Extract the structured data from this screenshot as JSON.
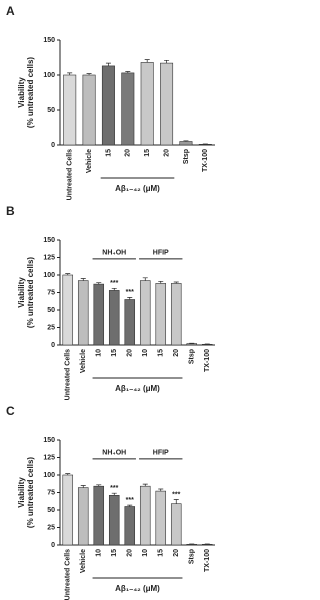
{
  "chart_data": [
    {
      "type": "bar",
      "panel": "A",
      "ylabel": [
        "Viability",
        "(% untreated cells)"
      ],
      "categories": [
        "Untreated Cells",
        "Vehicle",
        "15",
        "20",
        "15",
        "20",
        "Stsp",
        "TX-100"
      ],
      "values": [
        100,
        100,
        113,
        103,
        118,
        117,
        5,
        1
      ],
      "errors": [
        3,
        2,
        4,
        2,
        4,
        4,
        1,
        0.5
      ],
      "colors": [
        "#d9d9d9",
        "#bdbdbd",
        "#6e6e6e",
        "#7a7a7a",
        "#c8c8c8",
        "#c8c8c8",
        "#9a9a9a",
        "#555555"
      ],
      "xlabel": "Aβ₁₋₄₂ (μM)",
      "ylim": [
        0,
        150
      ],
      "yticks": [
        0,
        50,
        100,
        150
      ]
    },
    {
      "type": "bar",
      "panel": "B",
      "ylabel": [
        "Viability",
        "(% untreated cells)"
      ],
      "categories": [
        "Untreated Cells",
        "Vehicle",
        "10",
        "15",
        "20",
        "10",
        "15",
        "20",
        "Stsp",
        "TX-100"
      ],
      "values": [
        100,
        92,
        87,
        78,
        65,
        92,
        88,
        88,
        2,
        1
      ],
      "errors": [
        2,
        3,
        2,
        3,
        3,
        4,
        3,
        2,
        0.5,
        0.5
      ],
      "colors": [
        "#d9d9d9",
        "#bdbdbd",
        "#6e6e6e",
        "#6e6e6e",
        "#6e6e6e",
        "#c8c8c8",
        "#c8c8c8",
        "#c8c8c8",
        "#9a9a9a",
        "#555555"
      ],
      "significance": [
        null,
        null,
        null,
        "***",
        "***",
        null,
        null,
        null,
        null,
        null
      ],
      "groups": [
        {
          "label": "NH₄OH",
          "members": [
            2,
            3,
            4
          ]
        },
        {
          "label": "HFIP",
          "members": [
            5,
            6,
            7
          ]
        }
      ],
      "xlabel": "Aβ₁₋₄₂ (μM)",
      "ylim": [
        0,
        150
      ],
      "yticks": [
        0,
        25,
        50,
        75,
        100,
        125,
        150
      ]
    },
    {
      "type": "bar",
      "panel": "C",
      "ylabel": [
        "Viability",
        "(% untreated cells)"
      ],
      "categories": [
        "Untreated Cells",
        "Vehicle",
        "10",
        "15",
        "20",
        "10",
        "15",
        "20",
        "Stsp",
        "TX-100"
      ],
      "values": [
        100,
        82,
        84,
        71,
        55,
        84,
        77,
        59,
        1,
        1
      ],
      "errors": [
        2,
        3,
        2,
        3,
        2,
        3,
        3,
        6,
        0.5,
        0.5
      ],
      "colors": [
        "#d9d9d9",
        "#bdbdbd",
        "#6e6e6e",
        "#6e6e6e",
        "#6e6e6e",
        "#c8c8c8",
        "#c8c8c8",
        "#c8c8c8",
        "#9a9a9a",
        "#555555"
      ],
      "significance": [
        null,
        null,
        null,
        "***",
        "***",
        null,
        null,
        "***",
        null,
        null
      ],
      "groups": [
        {
          "label": "NH₄OH",
          "members": [
            2,
            3,
            4
          ]
        },
        {
          "label": "HFIP",
          "members": [
            5,
            6,
            7
          ]
        }
      ],
      "xlabel": "Aβ₁₋₄₂ (μM)",
      "ylim": [
        0,
        150
      ],
      "yticks": [
        0,
        25,
        50,
        75,
        100,
        125,
        150
      ]
    }
  ]
}
